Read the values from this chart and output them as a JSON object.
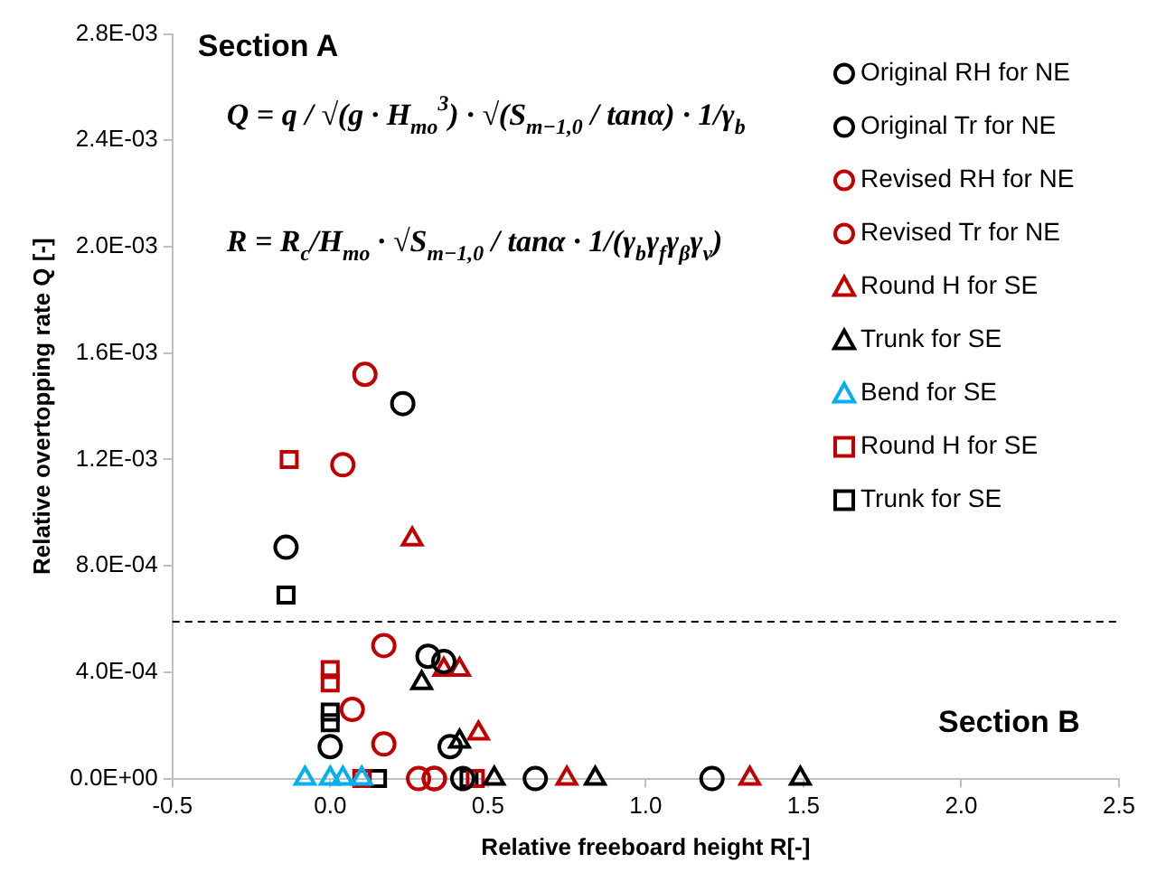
{
  "chart_data": {
    "type": "scatter",
    "xlabel": "Relative freeboard height R[-]",
    "ylabel": "Relative overtopping rate Q [-]",
    "xlim": [
      -0.5,
      2.5
    ],
    "xticks": [
      {
        "value": -0.5,
        "label": "-0.5"
      },
      {
        "value": 0,
        "label": "0.0"
      },
      {
        "value": 0.5,
        "label": "0.5"
      },
      {
        "value": 1,
        "label": "1.0"
      },
      {
        "value": 1.5,
        "label": "1.5"
      },
      {
        "value": 2,
        "label": "2.0"
      },
      {
        "value": 2.5,
        "label": "2.5"
      }
    ],
    "ylim": [
      0,
      0.0028
    ],
    "yticks": [
      {
        "value": 0,
        "label": "0.0E+00"
      },
      {
        "value": 0.0004,
        "label": "4.0E-04"
      },
      {
        "value": 0.0008,
        "label": "8.0E-04"
      },
      {
        "value": 0.0012,
        "label": "1.2E-03"
      },
      {
        "value": 0.0016,
        "label": "1.6E-03"
      },
      {
        "value": 0.002,
        "label": "2.0E-03"
      },
      {
        "value": 0.0024,
        "label": "2.4E-03"
      },
      {
        "value": 0.0028,
        "label": "2.8E-03"
      }
    ],
    "grid": false,
    "legend": "top right",
    "ref_lines": [
      {
        "axis": "y",
        "value": 0.00059,
        "line_style": "dashed",
        "color": "#000000"
      }
    ],
    "annotations": [
      "Section A",
      "Q = q / √(g · H$_{mo}$$^{3}$) · √(S$_{m−1,0}$ / tanα) · 1/γ$_{b}$",
      "R = R$_{c}$/H$_{mo}$ · √S$_{m−1,0}$ / tanα · 1/(γ$_{b}$γ$_{f}$γ$_{β}$γ$_{v}$)",
      "Section B"
    ],
    "series": [
      {
        "name": "Original RH for NE",
        "color": "#000000",
        "marker": "circle",
        "x": [
          0.23,
          0.31,
          0.36,
          0.38,
          0.42,
          0.65,
          1.21
        ],
        "values": [
          0.00141,
          0.00046,
          0.00044,
          0.00012,
          0,
          0,
          0
        ]
      },
      {
        "name": "Original Tr for NE",
        "color": "#000000",
        "marker": "circle",
        "x": [
          -0.14,
          0.0
        ],
        "values": [
          0.00087,
          0.00012
        ]
      },
      {
        "name": "Revised RH for NE",
        "color": "#c00000",
        "marker": "circle",
        "x": [
          0.11,
          0.17,
          0.17,
          0.28,
          0.33
        ],
        "values": [
          0.00152,
          0.0005,
          0.00013,
          0,
          0
        ]
      },
      {
        "name": "Revised Tr for NE",
        "color": "#c00000",
        "marker": "circle",
        "x": [
          0.04,
          0.07,
          0.33
        ],
        "values": [
          0.00118,
          0.00026,
          0
        ]
      },
      {
        "name": "Round H for SE",
        "color": "#c00000",
        "marker": "triangle",
        "x": [
          0.26,
          0.36,
          0.41,
          0.47,
          0.75,
          1.33
        ],
        "values": [
          0.0009,
          0.00041,
          0.00041,
          0.00017,
          0,
          0
        ]
      },
      {
        "name": "Trunk for SE",
        "color": "#000000",
        "marker": "triangle",
        "x": [
          0.29,
          0.41,
          0.52,
          0.84,
          1.49
        ],
        "values": [
          0.00036,
          0.00014,
          0,
          0,
          0
        ]
      },
      {
        "name": "Bend for SE",
        "color": "#00b0f0",
        "marker": "triangle",
        "x": [
          -0.08,
          0.0,
          0.04,
          0.1
        ],
        "values": [
          0,
          0,
          0,
          0
        ]
      },
      {
        "name": "Round H for SE",
        "color": "#c00000",
        "marker": "square",
        "x": [
          -0.13,
          0.0,
          0.0,
          0.1,
          0.46
        ],
        "values": [
          0.0012,
          0.00041,
          0.00036,
          0,
          0
        ]
      },
      {
        "name": "Trunk for SE",
        "color": "#000000",
        "marker": "square",
        "x": [
          -0.14,
          0.0,
          0.0,
          0.15,
          0.44
        ],
        "values": [
          0.00069,
          0.00025,
          0.00021,
          0,
          0
        ]
      }
    ]
  }
}
